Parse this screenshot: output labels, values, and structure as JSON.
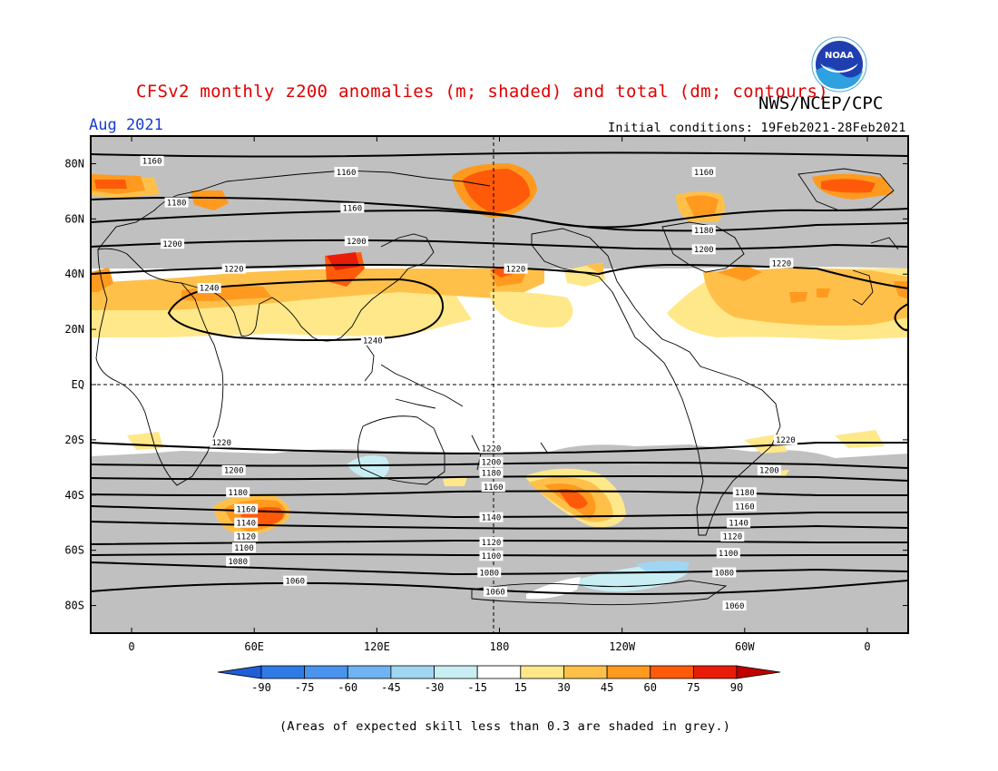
{
  "header": {
    "title": "CFSv2 monthly z200 anomalies (m; shaded) and total (dm; contours)",
    "agency": "NWS/NCEP/CPC",
    "period": "Aug 2021",
    "initial_conditions": "Initial conditions: 19Feb2021-28Feb2021",
    "logo_text": "NOAA"
  },
  "footnote": "(Areas of expected skill less than 0.3 are shaded in grey.)",
  "map": {
    "lon_range": [
      -20,
      380
    ],
    "lat_range": [
      -90,
      90
    ],
    "grey_color": "#c0c0c0",
    "lat_labels": [
      {
        "lat": 80,
        "text": "80N"
      },
      {
        "lat": 60,
        "text": "60N"
      },
      {
        "lat": 40,
        "text": "40N"
      },
      {
        "lat": 20,
        "text": "20N"
      },
      {
        "lat": 0,
        "text": "EQ"
      },
      {
        "lat": -20,
        "text": "20S"
      },
      {
        "lat": -40,
        "text": "40S"
      },
      {
        "lat": -60,
        "text": "60S"
      },
      {
        "lat": -80,
        "text": "80S"
      }
    ],
    "lon_labels": [
      {
        "lon": 0,
        "text": "0"
      },
      {
        "lon": 60,
        "text": "60E"
      },
      {
        "lon": 120,
        "text": "120E"
      },
      {
        "lon": 180,
        "text": "180"
      },
      {
        "lon": 240,
        "text": "120W"
      },
      {
        "lon": 300,
        "text": "60W"
      },
      {
        "lon": 360,
        "text": "0"
      }
    ]
  },
  "legend": {
    "labels": [
      "-90",
      "-75",
      "-60",
      "-45",
      "-30",
      "-15",
      "15",
      "30",
      "45",
      "60",
      "75",
      "90"
    ],
    "colors": [
      "#1f5fd6",
      "#2e7be6",
      "#4a94ee",
      "#6fb3f2",
      "#a0d6f2",
      "#c8eef4",
      "#ffffff",
      "#ffe88a",
      "#ffc04a",
      "#ff9a1e",
      "#ff5a0a",
      "#e81c08",
      "#c00000"
    ]
  },
  "contour_labels": [
    {
      "text": "1160",
      "lon": 10,
      "lat": 81
    },
    {
      "text": "1180",
      "lon": 22,
      "lat": 66
    },
    {
      "text": "1200",
      "lon": 20,
      "lat": 51
    },
    {
      "text": "1220",
      "lon": 50,
      "lat": 42
    },
    {
      "text": "1240",
      "lon": 38,
      "lat": 35
    },
    {
      "text": "1160",
      "lon": 105,
      "lat": 77
    },
    {
      "text": "1160",
      "lon": 108,
      "lat": 64
    },
    {
      "text": "1200",
      "lon": 110,
      "lat": 52
    },
    {
      "text": "1220",
      "lon": 188,
      "lat": 42
    },
    {
      "text": "1240",
      "lon": 118,
      "lat": 16
    },
    {
      "text": "1160",
      "lon": 280,
      "lat": 77
    },
    {
      "text": "1180",
      "lon": 280,
      "lat": 56
    },
    {
      "text": "1200",
      "lon": 280,
      "lat": 49
    },
    {
      "text": "1220",
      "lon": 318,
      "lat": 44
    },
    {
      "text": "1220",
      "lon": 44,
      "lat": -21
    },
    {
      "text": "1200",
      "lon": 50,
      "lat": -31
    },
    {
      "text": "1180",
      "lon": 52,
      "lat": -39
    },
    {
      "text": "1160",
      "lon": 56,
      "lat": -45
    },
    {
      "text": "1140",
      "lon": 56,
      "lat": -50
    },
    {
      "text": "1120",
      "lon": 56,
      "lat": -55
    },
    {
      "text": "1100",
      "lon": 55,
      "lat": -59
    },
    {
      "text": "1080",
      "lon": 52,
      "lat": -64
    },
    {
      "text": "1060",
      "lon": 80,
      "lat": -71
    },
    {
      "text": "1220",
      "lon": 176,
      "lat": -23
    },
    {
      "text": "1200",
      "lon": 176,
      "lat": -28
    },
    {
      "text": "1180",
      "lon": 176,
      "lat": -32
    },
    {
      "text": "1160",
      "lon": 177,
      "lat": -37
    },
    {
      "text": "1140",
      "lon": 176,
      "lat": -48
    },
    {
      "text": "1120",
      "lon": 176,
      "lat": -57
    },
    {
      "text": "1100",
      "lon": 176,
      "lat": -62
    },
    {
      "text": "1080",
      "lon": 175,
      "lat": -68
    },
    {
      "text": "1060",
      "lon": 178,
      "lat": -75
    },
    {
      "text": "1220",
      "lon": 320,
      "lat": -20
    },
    {
      "text": "1200",
      "lon": 312,
      "lat": -31
    },
    {
      "text": "1180",
      "lon": 300,
      "lat": -39
    },
    {
      "text": "1160",
      "lon": 300,
      "lat": -44
    },
    {
      "text": "1140",
      "lon": 297,
      "lat": -50
    },
    {
      "text": "1120",
      "lon": 294,
      "lat": -55
    },
    {
      "text": "1100",
      "lon": 292,
      "lat": -61
    },
    {
      "text": "1080",
      "lon": 290,
      "lat": -68
    },
    {
      "text": "1060",
      "lon": 295,
      "lat": -80
    }
  ]
}
